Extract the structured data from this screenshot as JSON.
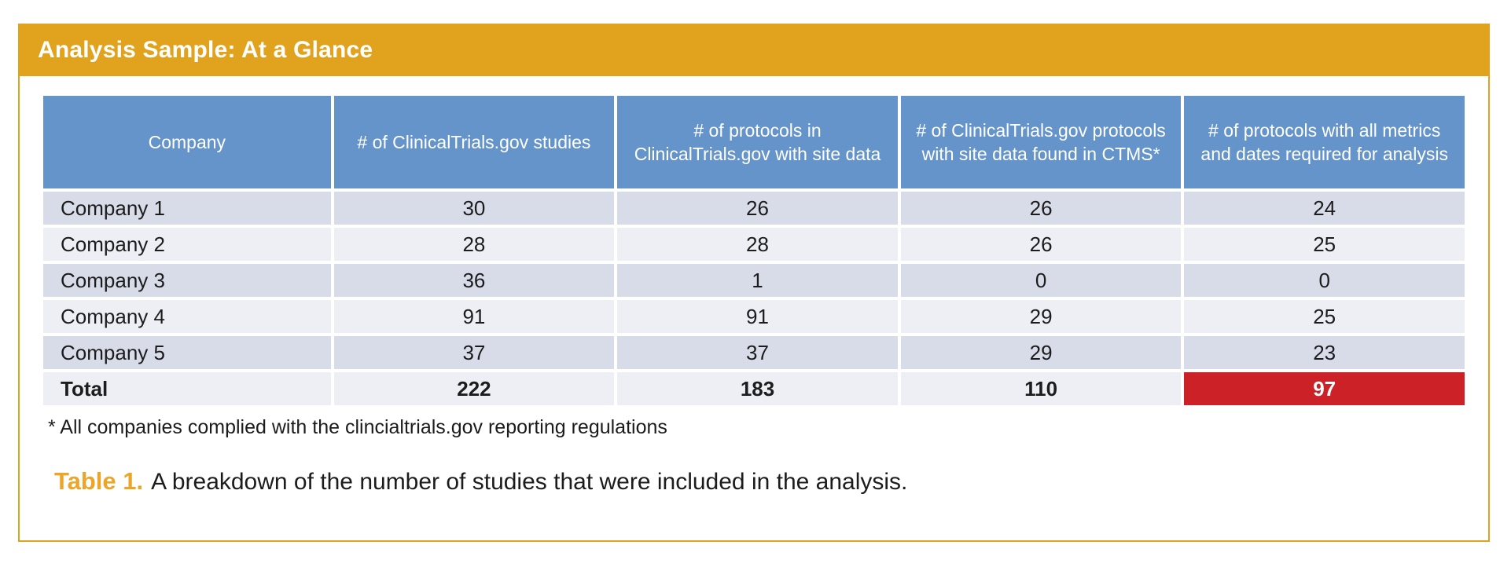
{
  "title_bar": {
    "title": "Analysis Sample: At a Glance"
  },
  "table": {
    "headers": [
      "Company",
      "# of ClinicalTrials.gov studies",
      "# of protocols in ClinicalTrials.gov with site data",
      "# of ClinicalTrials.gov protocols with site data found in CTMS*",
      "# of protocols with all metrics and dates required for analysis"
    ],
    "rows": [
      [
        "Company 1",
        "30",
        "26",
        "26",
        "24"
      ],
      [
        "Company 2",
        "28",
        "28",
        "26",
        "25"
      ],
      [
        "Company 3",
        "36",
        "1",
        "0",
        "0"
      ],
      [
        "Company 4",
        "91",
        "91",
        "29",
        "25"
      ],
      [
        "Company 5",
        "37",
        "37",
        "29",
        "23"
      ]
    ],
    "total": [
      "Total",
      "222",
      "183",
      "110",
      "97"
    ]
  },
  "footnote": "* All companies complied with the clincialtrials.gov reporting regulations",
  "caption": {
    "label": "Table 1.",
    "text": "A breakdown of the number of studies that were included in the analysis."
  },
  "colors": {
    "accent_orange": "#E1A31E",
    "caption_orange": "#EBA629",
    "header_blue": "#6494C9",
    "row_dark": "#D8DCE9",
    "row_light": "#EDEFF5",
    "highlight_red": "#CC2127"
  }
}
